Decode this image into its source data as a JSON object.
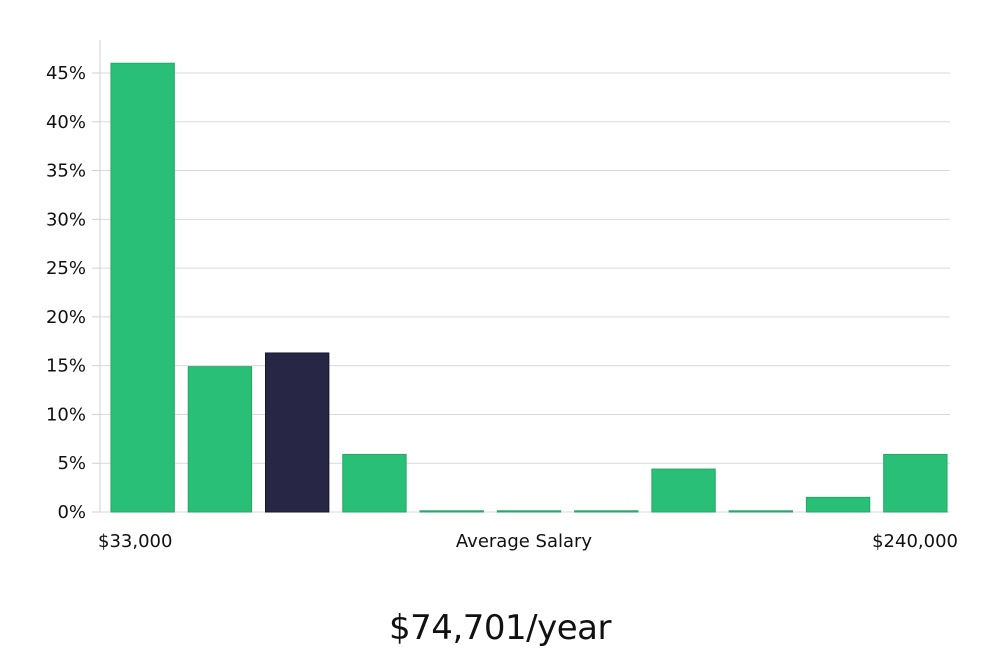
{
  "chart_data": {
    "type": "bar",
    "categories": [
      "$33,000",
      "",
      "",
      "",
      "",
      "",
      "",
      "",
      "",
      "",
      "$240,000"
    ],
    "values": [
      46.0,
      14.9,
      16.3,
      5.9,
      0,
      0,
      0,
      4.4,
      0,
      1.5,
      5.9
    ],
    "highlight_index": 2,
    "xlabel": "Average Salary",
    "x_min_label": "$33,000",
    "x_max_label": "$240,000",
    "ylim": [
      0,
      45
    ],
    "y_ticks": [
      {
        "value": 0,
        "label": "0%"
      },
      {
        "value": 5,
        "label": "5%"
      },
      {
        "value": 10,
        "label": "10%"
      },
      {
        "value": 15,
        "label": "15%"
      },
      {
        "value": 20,
        "label": "20%"
      },
      {
        "value": 25,
        "label": "25%"
      },
      {
        "value": 30,
        "label": "30%"
      },
      {
        "value": 35,
        "label": "35%"
      },
      {
        "value": 40,
        "label": "40%"
      },
      {
        "value": 45,
        "label": "45%"
      }
    ],
    "grid": true,
    "colors": {
      "bar": "#2abf77",
      "highlight": "#272644",
      "grid": "#d9d9d9",
      "axis": "#d0d0d0"
    }
  },
  "summary": {
    "average_salary": "$74,701/year"
  }
}
